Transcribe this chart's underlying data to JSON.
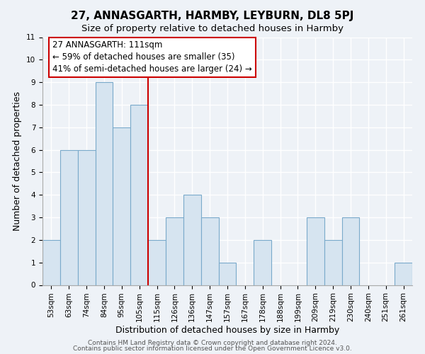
{
  "title": "27, ANNASGARTH, HARMBY, LEYBURN, DL8 5PJ",
  "subtitle": "Size of property relative to detached houses in Harmby",
  "xlabel": "Distribution of detached houses by size in Harmby",
  "ylabel": "Number of detached properties",
  "categories": [
    "53sqm",
    "63sqm",
    "74sqm",
    "84sqm",
    "95sqm",
    "105sqm",
    "115sqm",
    "126sqm",
    "136sqm",
    "147sqm",
    "157sqm",
    "167sqm",
    "178sqm",
    "188sqm",
    "199sqm",
    "209sqm",
    "219sqm",
    "230sqm",
    "240sqm",
    "251sqm",
    "261sqm"
  ],
  "values": [
    2,
    6,
    6,
    9,
    7,
    8,
    2,
    3,
    4,
    3,
    1,
    0,
    2,
    0,
    0,
    3,
    2,
    3,
    0,
    0,
    1
  ],
  "bar_facecolor": "#d6e4f0",
  "bar_edgecolor": "#7aaacb",
  "vline_color": "#cc0000",
  "vline_x_index": 5.5,
  "ylim": [
    0,
    11
  ],
  "yticks": [
    0,
    1,
    2,
    3,
    4,
    5,
    6,
    7,
    8,
    9,
    10,
    11
  ],
  "annotation_line1": "27 ANNASGARTH: 111sqm",
  "annotation_line2": "← 59% of detached houses are smaller (35)",
  "annotation_line3": "41% of semi-detached houses are larger (24) →",
  "footer_line1": "Contains HM Land Registry data © Crown copyright and database right 2024.",
  "footer_line2": "Contains public sector information licensed under the Open Government Licence v3.0.",
  "background_color": "#eef2f7",
  "plot_bg_color": "#eef2f7",
  "grid_color": "#ffffff",
  "title_fontsize": 11,
  "subtitle_fontsize": 9.5,
  "axis_label_fontsize": 9,
  "tick_fontsize": 7.5,
  "footer_fontsize": 6.5,
  "annot_fontsize": 8.5
}
